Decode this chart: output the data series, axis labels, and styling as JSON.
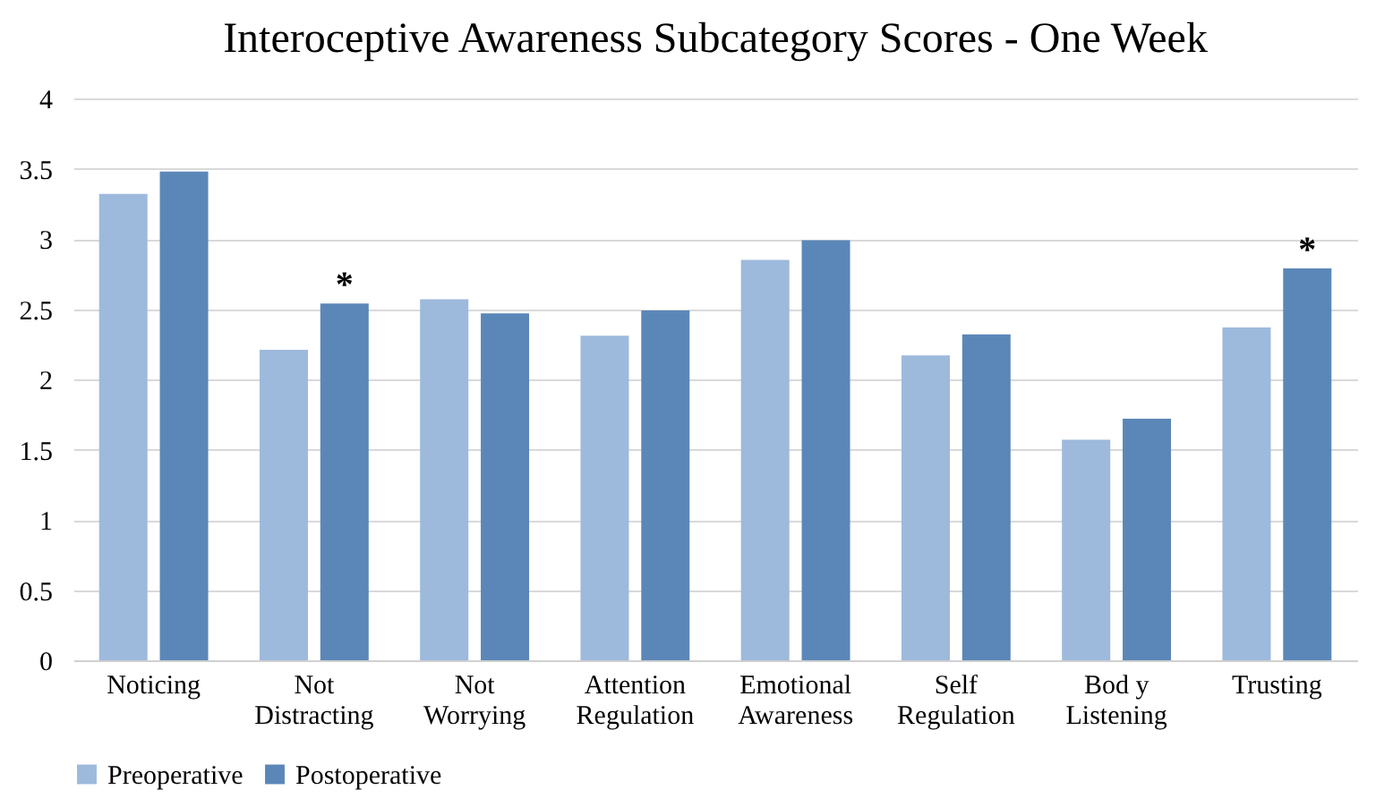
{
  "chart_data": {
    "type": "bar",
    "title": "Interoceptive Awareness Subcategory Scores - One Week",
    "categories": [
      "Noticing",
      "Not Distracting",
      "Not Worrying",
      "Attention Regulation",
      "Emotional Awareness",
      "Self Regulation",
      "Bod y Listening",
      "Trusting"
    ],
    "series": [
      {
        "name": "Preoperative",
        "color": "#9db9dc",
        "values": [
          3.32,
          2.21,
          2.57,
          2.31,
          2.85,
          2.17,
          1.57,
          2.37
        ]
      },
      {
        "name": "Postoperative",
        "color": "#5b87b8",
        "values": [
          3.48,
          2.54,
          2.47,
          2.49,
          2.99,
          2.32,
          1.72,
          2.79
        ]
      }
    ],
    "ylim": [
      0,
      4
    ],
    "yticks": [
      0,
      0.5,
      1,
      1.5,
      2,
      2.5,
      3,
      3.5,
      4
    ],
    "grid": "y",
    "legend": "bottom",
    "annotations": [
      {
        "text": "*",
        "x": "Not Distracting",
        "y": 2.54
      },
      {
        "text": "*",
        "x": "Trusting",
        "y": 2.79
      }
    ]
  }
}
